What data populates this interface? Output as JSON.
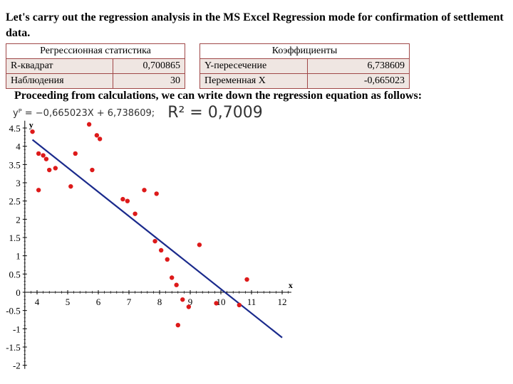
{
  "title": "Let's carry out the regression analysis in the MS Excel Regression mode for confirmation of settlement data.",
  "stats_table": {
    "header": "Регрессионная статистика",
    "rows": [
      {
        "label": "R-квадрат",
        "value": "0,700865"
      },
      {
        "label": "Наблюдения",
        "value": "30"
      }
    ]
  },
  "coef_table": {
    "header": "Коэффициенты",
    "rows": [
      {
        "label": "Y-пересечение",
        "value": "6,738609"
      },
      {
        "label": "Переменная  X",
        "value": "-0,665023"
      }
    ]
  },
  "paragraph": "Proceeding from calculations, we can write down the regression equation as follows:",
  "equation": {
    "lhs": "yᴾ = −0,665023X + 6,738609;",
    "r2": "R² = 0,7009"
  },
  "colors": {
    "points": "#dd1a1a",
    "line": "#1a2a8c",
    "table_border": "#a04848",
    "table_fill": "#efe6e2"
  },
  "chart_data": {
    "type": "scatter",
    "xlabel": "x",
    "ylabel": "y",
    "xlim": [
      3.6,
      12.3
    ],
    "ylim": [
      -2.1,
      4.7
    ],
    "x_ticks": [
      "4",
      "5",
      "6",
      "7",
      "8",
      "9",
      "10",
      "11",
      "12"
    ],
    "y_ticks": [
      "-2",
      "-1.5",
      "-1",
      "-0.5",
      "0",
      "0.5",
      "1",
      "1.5",
      "2",
      "2.5",
      "3",
      "3.5",
      "4",
      "4.5"
    ],
    "grid": false,
    "points": {
      "x": [
        3.85,
        4.05,
        4.2,
        4.3,
        4.4,
        4.6,
        4.05,
        5.1,
        5.25,
        5.7,
        5.8,
        5.95,
        6.05,
        6.8,
        6.95,
        7.2,
        7.5,
        7.85,
        7.9,
        8.05,
        8.25,
        8.4,
        8.55,
        8.75,
        8.95,
        9.3,
        9.85,
        10.6,
        10.85,
        8.6
      ],
      "y": [
        4.4,
        3.8,
        3.75,
        3.65,
        3.35,
        3.4,
        2.8,
        2.9,
        3.8,
        4.6,
        3.35,
        4.3,
        4.2,
        2.55,
        2.5,
        2.15,
        2.8,
        1.4,
        2.7,
        1.15,
        0.9,
        0.4,
        0.2,
        -0.2,
        -0.4,
        1.3,
        -0.3,
        -0.35,
        0.35,
        -0.9
      ]
    },
    "regression_line": {
      "slope": -0.665023,
      "intercept": 6.738609,
      "x_range": [
        3.85,
        12.0
      ]
    }
  }
}
